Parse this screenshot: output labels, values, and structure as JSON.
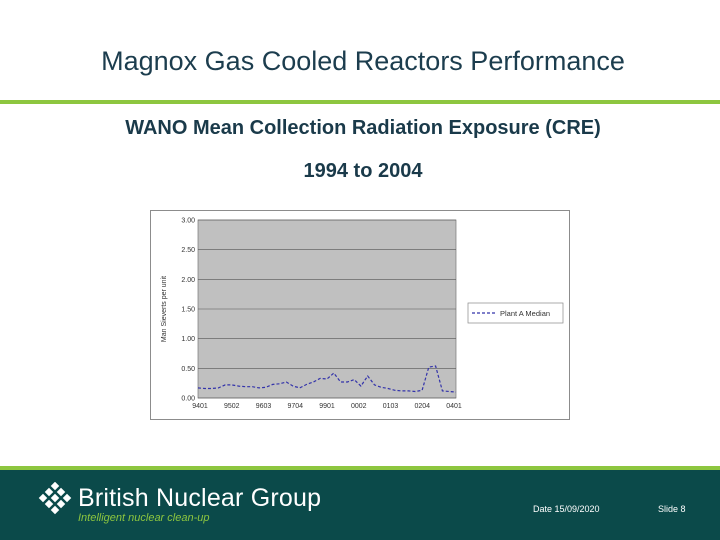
{
  "slide": {
    "title": "Magnox Gas Cooled Reactors Performance",
    "subtitle_line1": "WANO Mean Collection Radiation Exposure (CRE)",
    "subtitle_line2": "1994 to 2004"
  },
  "footer": {
    "brand": "British Nuclear Group",
    "tagline": "Intelligent nuclear clean-up",
    "date": "Date 15/09/2020",
    "slide_number": "Slide 8"
  },
  "colors": {
    "title_text": "#1c3d4e",
    "accent_green": "#8dc63f",
    "footer_bg": "#0b4a4a",
    "plot_bg": "#c0c0c0",
    "series_line": "#3333aa"
  },
  "chart_data": {
    "type": "line",
    "title": "",
    "xlabel": "",
    "ylabel": "Man Sieverts per unit",
    "ylim": [
      0,
      3
    ],
    "yticks": [
      "3.00",
      "2.50",
      "2.00",
      "1.50",
      "1.00",
      "0.50",
      "0.00"
    ],
    "x_tick_labels": [
      "9401",
      "9502",
      "9603",
      "9704",
      "9901",
      "0002",
      "0103",
      "0204",
      "0401"
    ],
    "grid": true,
    "legend_position": "right",
    "series": [
      {
        "name": "Plant A Median",
        "style": "dashed",
        "values": [
          0.17,
          0.16,
          0.16,
          0.17,
          0.22,
          0.22,
          0.2,
          0.19,
          0.19,
          0.17,
          0.18,
          0.23,
          0.24,
          0.27,
          0.2,
          0.17,
          0.23,
          0.27,
          0.33,
          0.32,
          0.42,
          0.27,
          0.27,
          0.31,
          0.2,
          0.37,
          0.22,
          0.18,
          0.16,
          0.13,
          0.12,
          0.12,
          0.11,
          0.13,
          0.52,
          0.54,
          0.12,
          0.11,
          0.1
        ]
      }
    ]
  }
}
